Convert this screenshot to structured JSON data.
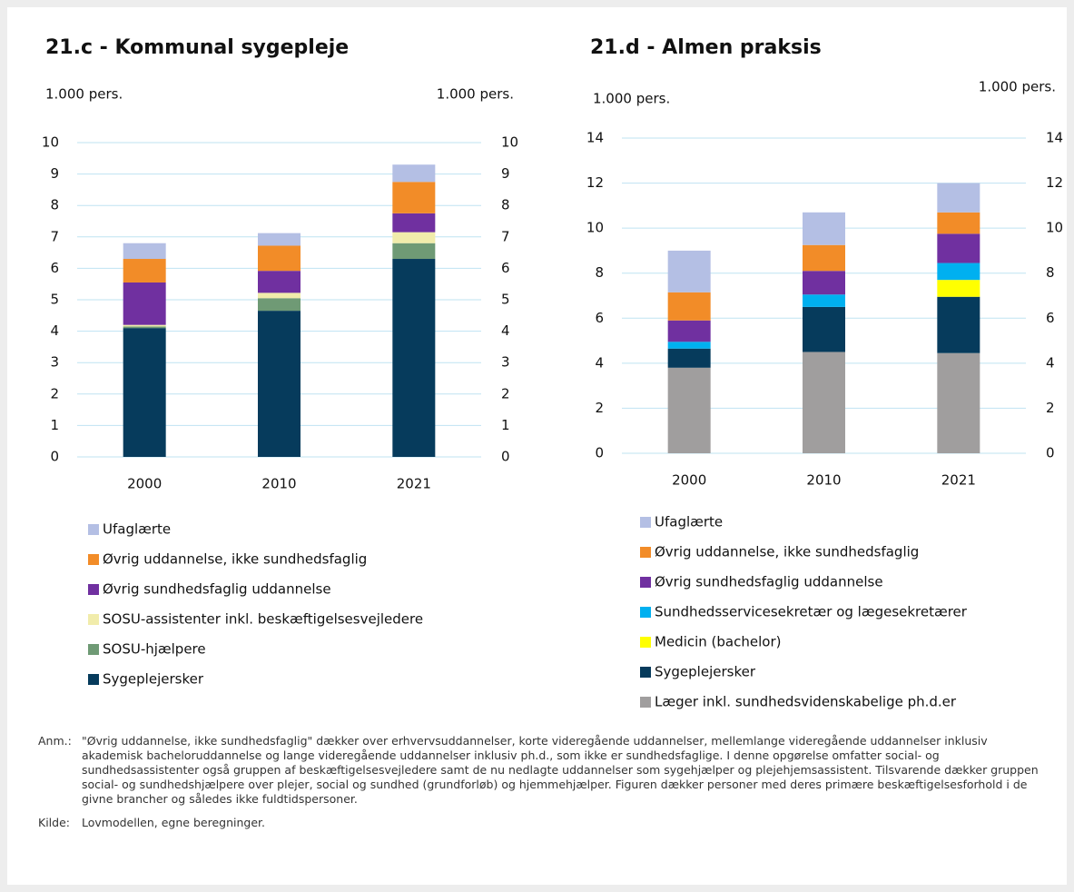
{
  "chart_data": [
    {
      "type": "bar",
      "stacked": true,
      "title": "21.c - Kommunal sygepleje",
      "ylabel": "1.000 pers.",
      "y2label": "1.000 pers.",
      "categories": [
        "2000",
        "2010",
        "2021"
      ],
      "ylim": [
        0,
        10
      ],
      "yticks": [
        0,
        1,
        2,
        3,
        4,
        5,
        6,
        7,
        8,
        9,
        10
      ],
      "y2lim": [
        0,
        10
      ],
      "y2ticks": [
        0,
        1,
        2,
        3,
        4,
        5,
        6,
        7,
        8,
        9,
        10
      ],
      "grid": true,
      "series": [
        {
          "name": "Sygeplejersker",
          "color": "#063b5c",
          "values": [
            4.1,
            4.65,
            6.3
          ]
        },
        {
          "name": "SOSU-hjælpere",
          "color": "#6f9a75",
          "values": [
            0.05,
            0.4,
            0.5
          ]
        },
        {
          "name": "SOSU-assistenter inkl. beskæftigelsesvejledere",
          "color": "#f1ecab",
          "values": [
            0.05,
            0.17,
            0.35
          ]
        },
        {
          "name": "Øvrig sundhedsfaglig uddannelse",
          "color": "#7030a0",
          "values": [
            1.35,
            0.7,
            0.6
          ]
        },
        {
          "name": "Øvrig uddannelse, ikke sundhedsfaglig",
          "color": "#f28c28",
          "values": [
            0.75,
            0.8,
            1.0
          ]
        },
        {
          "name": "Ufaglærte",
          "color": "#b4bfe4",
          "values": [
            0.5,
            0.4,
            0.55
          ]
        }
      ]
    },
    {
      "type": "bar",
      "stacked": true,
      "title": "21.d - Almen praksis",
      "ylabel": "1.000 pers.",
      "y2label": "1.000 pers.",
      "categories": [
        "2000",
        "2010",
        "2021"
      ],
      "ylim": [
        0,
        14
      ],
      "yticks": [
        0,
        2,
        4,
        6,
        8,
        10,
        12,
        14
      ],
      "y2lim": [
        0,
        14
      ],
      "y2ticks": [
        0,
        2,
        4,
        6,
        8,
        10,
        12,
        14
      ],
      "grid": true,
      "series": [
        {
          "name": "Læger inkl. sundhedsvidenskabelige ph.d.er",
          "color": "#a09e9e",
          "values": [
            3.8,
            4.5,
            4.45
          ]
        },
        {
          "name": "Sygeplejersker",
          "color": "#063b5c",
          "values": [
            0.85,
            2.0,
            2.5
          ]
        },
        {
          "name": "Medicin (bachelor)",
          "color": "#ffff00",
          "values": [
            0,
            0,
            0.75
          ]
        },
        {
          "name": "Sundhedsservicesekretær og lægesekretærer",
          "color": "#00b0f0",
          "values": [
            0.3,
            0.55,
            0.75
          ]
        },
        {
          "name": "Øvrig sundhedsfaglig uddannelse",
          "color": "#7030a0",
          "values": [
            0.95,
            1.05,
            1.3
          ]
        },
        {
          "name": "Øvrig uddannelse, ikke sundhedsfaglig",
          "color": "#f28c28",
          "values": [
            1.25,
            1.15,
            0.95
          ]
        },
        {
          "name": "Ufaglærte",
          "color": "#b4bfe4",
          "values": [
            1.85,
            1.45,
            1.3
          ]
        }
      ]
    }
  ],
  "note": {
    "label": "Anm.:",
    "text": "\"Øvrig uddannelse, ikke sundhedsfaglig\" dækker over erhvervsuddannelser, korte videregående uddannelser, mellemlange videregående uddannelser inklusiv akademisk bacheloruddannelse og lange videregående uddannelser inklusiv ph.d., som ikke er sundhedsfaglige. I denne opgørelse omfatter social- og sundhedsassistenter også gruppen af beskæftigelsesvejledere samt de nu nedlagte uddannelser som sygehjælper og plejehjemsassistent. Tilsvarende dækker gruppen social- og sundhedshjælpere over plejer, social og sundhed (grundforløb) og hjemmehjælper. Figuren dækker personer med deres primære beskæftigelsesforhold i de givne brancher og således ikke fuldtidspersoner."
  },
  "source": {
    "label": "Kilde:",
    "text": "Lovmodellen, egne beregninger."
  }
}
